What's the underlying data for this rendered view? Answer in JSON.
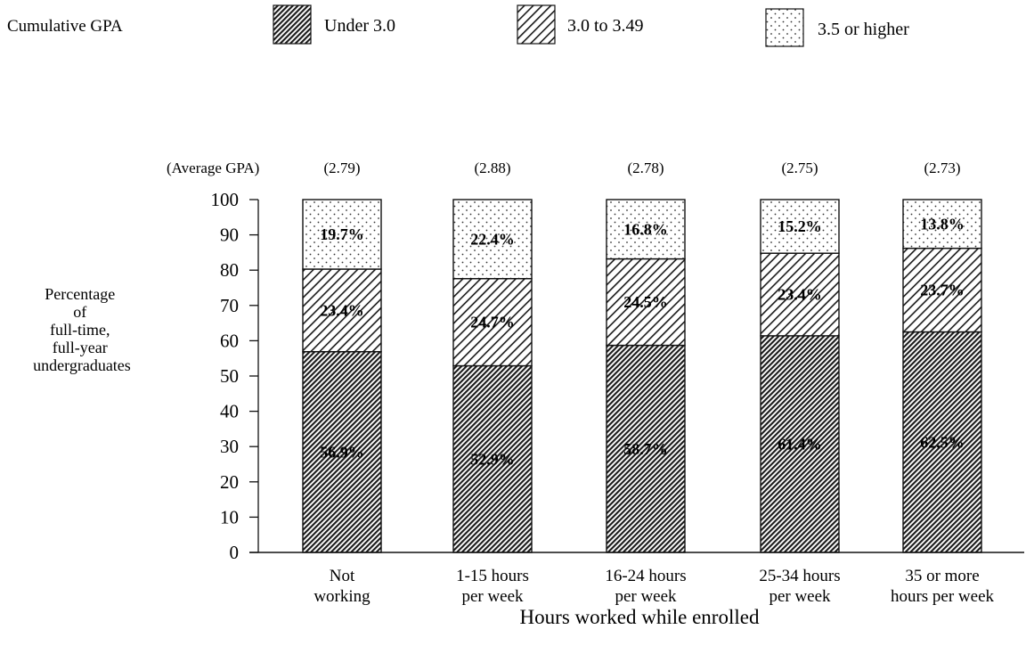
{
  "legend_title": "Cumulative GPA",
  "average_label": "(Average GPA)",
  "chart_data": {
    "type": "bar",
    "stacked": true,
    "categories": [
      [
        "Not",
        "working"
      ],
      [
        "1-15 hours",
        "per week"
      ],
      [
        "16-24 hours",
        "per week"
      ],
      [
        "25-34 hours",
        "per week"
      ],
      [
        "35 or more",
        "hours per week"
      ]
    ],
    "average_gpa": [
      "(2.79)",
      "(2.88)",
      "(2.78)",
      "(2.75)",
      "(2.73)"
    ],
    "series": [
      {
        "name": "Under 3.0",
        "values": [
          56.9,
          52.9,
          58.7,
          61.4,
          62.5
        ],
        "labels": [
          "56.9%",
          "52.9%",
          "58.7%",
          "61.4%",
          "62.5%"
        ],
        "pattern": "dense-hatch"
      },
      {
        "name": "3.0 to 3.49",
        "values": [
          23.4,
          24.7,
          24.5,
          23.4,
          23.7
        ],
        "labels": [
          "23.4%",
          "24.7%",
          "24.5%",
          "23.4%",
          "23.7%"
        ],
        "pattern": "hatch"
      },
      {
        "name": "3.5 or higher",
        "values": [
          19.7,
          22.4,
          16.8,
          15.2,
          13.8
        ],
        "labels": [
          "19.7%",
          "22.4%",
          "16.8%",
          "15.2%",
          "13.8%"
        ],
        "pattern": "dots"
      }
    ],
    "ylabel": [
      "Percentage",
      "of",
      "full-time,",
      "full-year",
      "undergraduates"
    ],
    "xlabel": "Hours worked while enrolled",
    "ylim": [
      0,
      100
    ],
    "yticks": [
      0,
      10,
      20,
      30,
      40,
      50,
      60,
      70,
      80,
      90,
      100
    ],
    "grid": false,
    "legend_position": "top"
  }
}
